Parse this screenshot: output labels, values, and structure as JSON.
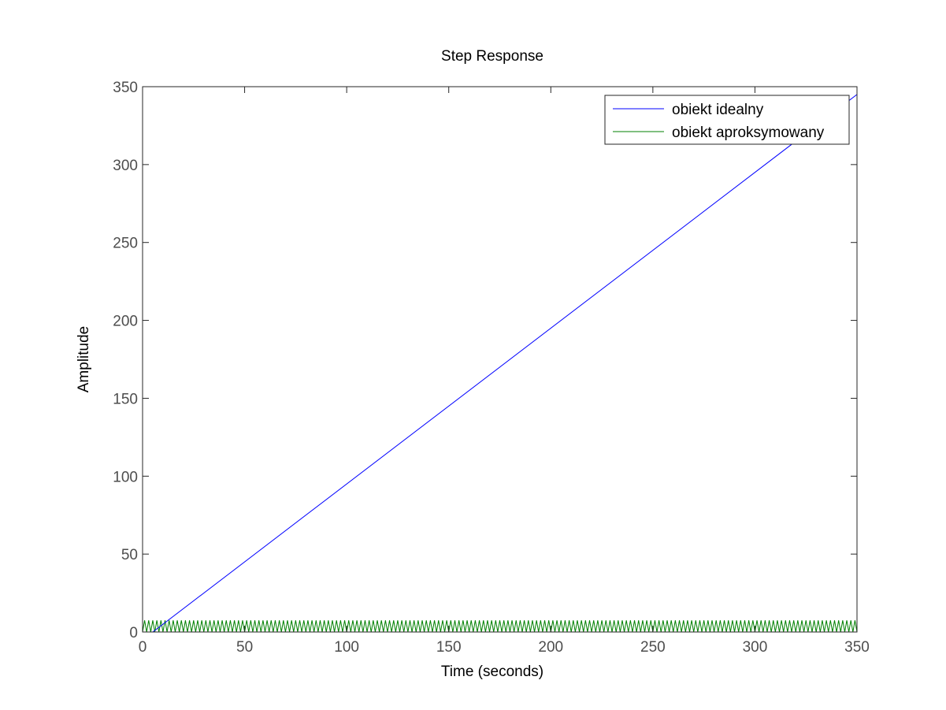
{
  "chart_data": {
    "type": "line",
    "title": "Step Response",
    "xlabel": "Time (seconds)",
    "ylabel": "Amplitude",
    "xlim": [
      0,
      350
    ],
    "ylim": [
      0,
      350
    ],
    "xticks": [
      0,
      50,
      100,
      150,
      200,
      250,
      300,
      350
    ],
    "yticks": [
      0,
      50,
      100,
      150,
      200,
      250,
      300,
      350
    ],
    "grid": false,
    "legend_position": "top-right",
    "series": [
      {
        "name": "obiekt idealny",
        "color": "#0000ff",
        "x": [
          0,
          5,
          350
        ],
        "y": [
          0,
          0,
          345
        ]
      },
      {
        "name": "obiekt aproksymowany",
        "color": "#008000",
        "oscillation": {
          "x_start": 0,
          "x_end": 350,
          "y_min": 0,
          "y_max": 7.5,
          "period": 2
        }
      }
    ]
  }
}
